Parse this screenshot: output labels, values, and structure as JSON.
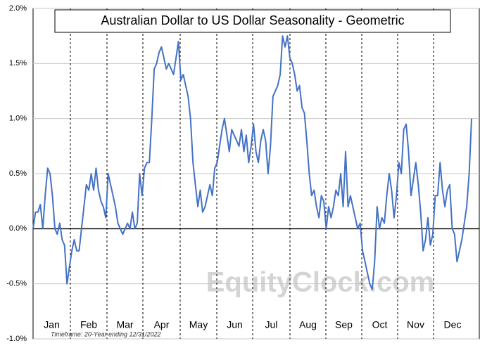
{
  "chart_data": {
    "type": "line",
    "title": "Australian Dollar to US Dollar Seasonality - Geometric",
    "watermark": "EquityClock.com",
    "footnote": "Timeframe: 20-Year ending 12/31/2022",
    "months": [
      "Jan",
      "Feb",
      "Mar",
      "Apr",
      "May",
      "Jun",
      "Jul",
      "Aug",
      "Sep",
      "Oct",
      "Nov",
      "Dec"
    ],
    "color": "#4472c4",
    "ylim": [
      -1,
      2
    ],
    "yticks": [
      {
        "value": -1,
        "label": "-1.0%"
      },
      {
        "value": -0.5,
        "label": "-0.5%"
      },
      {
        "value": 0,
        "label": "0.0%"
      },
      {
        "value": 0.5,
        "label": "0.5%"
      },
      {
        "value": 1,
        "label": "1.0%"
      },
      {
        "value": 1.5,
        "label": "1.5%"
      },
      {
        "value": 2,
        "label": "2.0%"
      }
    ],
    "grid": true,
    "values": [
      0.0,
      0.15,
      0.15,
      0.22,
      0.0,
      0.3,
      0.55,
      0.5,
      0.3,
      0.0,
      -0.05,
      0.05,
      -0.1,
      -0.15,
      -0.5,
      -0.35,
      -0.2,
      -0.1,
      -0.2,
      -0.2,
      0.0,
      0.2,
      0.4,
      0.35,
      0.5,
      0.35,
      0.55,
      0.35,
      0.25,
      0.2,
      0.1,
      0.5,
      0.4,
      0.3,
      0.2,
      0.05,
      0.0,
      -0.05,
      0.0,
      0.05,
      0.0,
      0.15,
      0.0,
      0.05,
      0.5,
      0.3,
      0.55,
      0.6,
      0.6,
      1.0,
      1.45,
      1.5,
      1.6,
      1.65,
      1.55,
      1.45,
      1.5,
      1.45,
      1.4,
      1.55,
      1.7,
      1.35,
      1.4,
      1.3,
      1.2,
      1.0,
      0.6,
      0.4,
      0.2,
      0.35,
      0.15,
      0.2,
      0.3,
      0.4,
      0.3,
      0.55,
      0.6,
      0.75,
      0.9,
      1.0,
      0.85,
      0.7,
      0.9,
      0.85,
      0.8,
      0.75,
      0.9,
      0.7,
      0.85,
      0.6,
      0.75,
      0.95,
      0.7,
      0.6,
      0.8,
      0.9,
      0.8,
      0.5,
      0.75,
      1.2,
      1.25,
      1.3,
      1.4,
      1.75,
      1.65,
      1.75,
      1.55,
      1.5,
      1.4,
      1.25,
      1.3,
      1.1,
      1.05,
      0.8,
      0.5,
      0.3,
      0.35,
      0.2,
      0.1,
      0.3,
      0.25,
      0.0,
      0.2,
      0.1,
      0.2,
      0.35,
      0.3,
      0.5,
      0.2,
      0.7,
      0.2,
      0.3,
      0.2,
      0.1,
      0.0,
      0.05,
      -0.2,
      -0.3,
      -0.4,
      -0.5,
      -0.55,
      -0.3,
      0.2,
      0.0,
      0.1,
      0.05,
      0.3,
      0.5,
      0.35,
      0.1,
      0.3,
      0.6,
      0.5,
      0.9,
      0.95,
      0.7,
      0.3,
      0.45,
      0.6,
      0.4,
      0.15,
      -0.2,
      -0.1,
      0.1,
      -0.15,
      -0.05,
      0.3,
      0.3,
      0.6,
      0.35,
      0.2,
      0.35,
      0.4,
      0.0,
      -0.05,
      -0.3,
      -0.2,
      -0.1,
      0.05,
      0.2,
      0.5,
      1.0
    ]
  }
}
